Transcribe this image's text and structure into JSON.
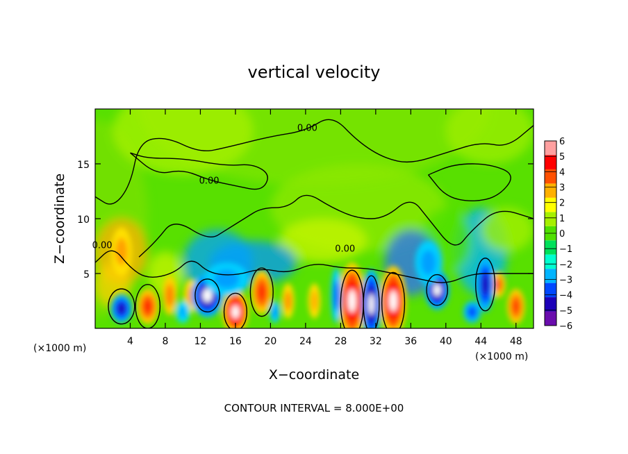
{
  "chart_data": {
    "type": "heatmap",
    "title": "vertical velocity",
    "xlabel": "X−coordinate",
    "ylabel": "Z−coordinate",
    "x_unit_label_left": "(×1000 m)",
    "x_unit_label_right": "(×1000 m)",
    "xlim": [
      0,
      50
    ],
    "ylim": [
      0,
      20
    ],
    "x_ticks": [
      4,
      8,
      12,
      16,
      20,
      24,
      28,
      32,
      36,
      40,
      44,
      48
    ],
    "y_ticks": [
      5,
      10,
      15
    ],
    "x_tick_labels": [
      "4",
      "8",
      "12",
      "16",
      "20",
      "24",
      "28",
      "32",
      "36",
      "40",
      "44",
      "48"
    ],
    "y_tick_labels": [
      "5",
      "10",
      "15"
    ],
    "contour_label": "0.00",
    "contour_interval_text": "CONTOUR INTERVAL = 8.000E+00",
    "colorbar": {
      "min": -6,
      "max": 6,
      "tick_values": [
        6,
        5,
        4,
        3,
        2,
        1,
        0,
        -1,
        -2,
        -3,
        -4,
        -5,
        -6
      ],
      "tick_labels": [
        "6",
        "5",
        "4",
        "3",
        "2",
        "1",
        "0",
        "−1",
        "−2",
        "−3",
        "−4",
        "−5",
        "−6"
      ],
      "colors": [
        "#6a0dad",
        "#1c00b8",
        "#0048ff",
        "#00b4ff",
        "#00ffd0",
        "#00e05a",
        "#4fe000",
        "#a6f000",
        "#ffff00",
        "#ffb000",
        "#ff5000",
        "#ff0000",
        "#ffa0a0"
      ]
    },
    "features": [
      {
        "kind": "updraft",
        "x": 6,
        "z": 2,
        "value": 3
      },
      {
        "kind": "downdraft",
        "x": 3,
        "z": 2,
        "value": -4
      },
      {
        "kind": "updraft",
        "x": 16,
        "z": 1.5,
        "value": 6
      },
      {
        "kind": "updraft",
        "x": 19,
        "z": 3.5,
        "value": 4
      },
      {
        "kind": "updraft",
        "x": 22,
        "z": 2.5,
        "value": 3
      },
      {
        "kind": "updraft",
        "x": 29,
        "z": 2.5,
        "value": 6
      },
      {
        "kind": "downdraft",
        "x": 32,
        "z": 2,
        "value": -6
      },
      {
        "kind": "updraft",
        "x": 34,
        "z": 2.5,
        "value": 6
      },
      {
        "kind": "downdraft",
        "x": 13,
        "z": 3,
        "value": -6
      },
      {
        "kind": "downdraft",
        "x": 39,
        "z": 3.5,
        "value": -6
      },
      {
        "kind": "downdraft",
        "x": 45,
        "z": 4,
        "value": -5
      },
      {
        "kind": "updraft",
        "x": 48,
        "z": 2,
        "value": 4
      }
    ]
  }
}
